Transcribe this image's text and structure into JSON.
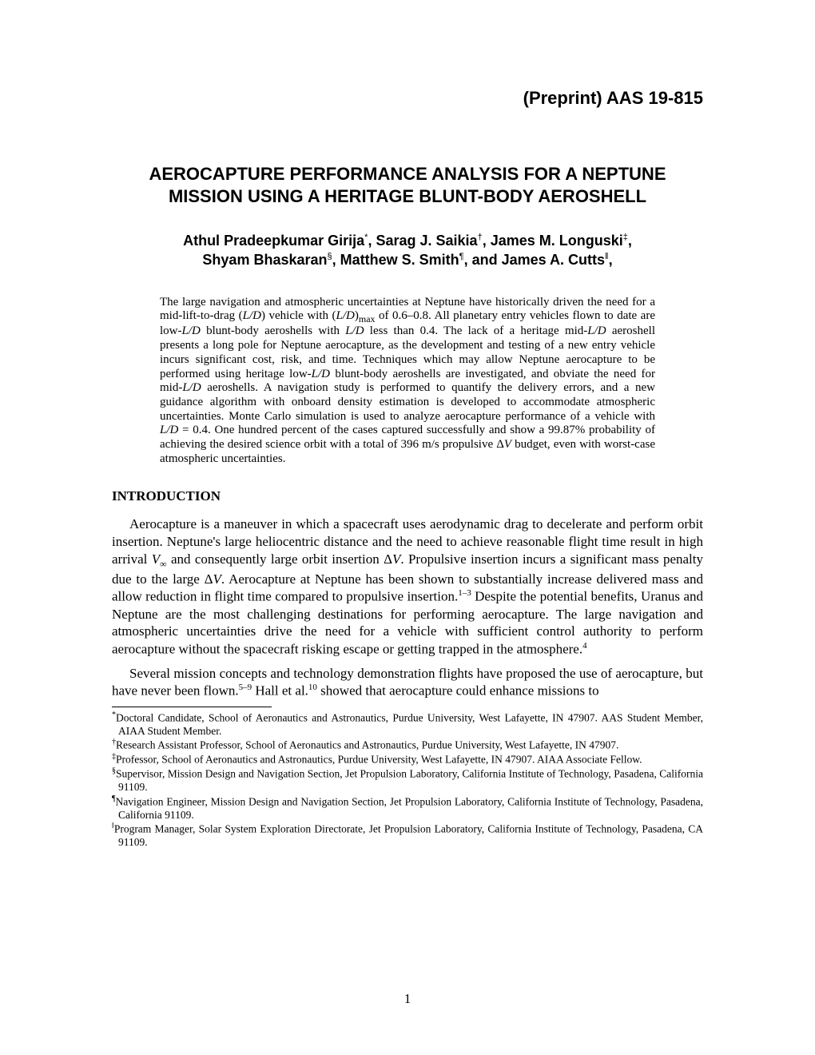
{
  "preprint_label": "(Preprint) AAS 19-815",
  "title": "AEROCAPTURE PERFORMANCE ANALYSIS FOR A NEPTUNE MISSION USING A HERITAGE BLUNT-BODY AEROSHELL",
  "authors_line1": "Athul Pradeepkumar Girija,* Sarag J. Saikia,† James M. Longuski,‡",
  "authors_line2": "Shyam Bhaskaran,§ Matthew S. Smith,¶ and James A. Cutts,‖",
  "authors": [
    {
      "name": "Athul Pradeepkumar Girija",
      "marker": "*"
    },
    {
      "name": "Sarag J. Saikia",
      "marker": "†"
    },
    {
      "name": "James M. Longuski",
      "marker": "‡"
    },
    {
      "name": "Shyam Bhaskaran",
      "marker": "§"
    },
    {
      "name": "Matthew S. Smith",
      "marker": "¶"
    },
    {
      "name": "James A. Cutts",
      "marker": "‖"
    }
  ],
  "abstract": "The large navigation and atmospheric uncertainties at Neptune have historically driven the need for a mid-lift-to-drag (L/D) vehicle with (L/D)max of 0.6–0.8. All planetary entry vehicles flown to date are low-L/D blunt-body aeroshells with L/D less than 0.4. The lack of a heritage mid-L/D aeroshell presents a long pole for Neptune aerocapture, as the development and testing of a new entry vehicle incurs significant cost, risk, and time. Techniques which may allow Neptune aerocapture to be performed using heritage low-L/D blunt-body aeroshells are investigated, and obviate the need for mid-L/D aeroshells. A navigation study is performed to quantify the delivery errors, and a new guidance algorithm with onboard density estimation is developed to accommodate atmospheric uncertainties. Monte Carlo simulation is used to analyze aerocapture performance of a vehicle with L/D = 0.4. One hundred percent of the cases captured successfully and show a 99.87% probability of achieving the desired science orbit with a total of 396 m/s propulsive ΔV budget, even with worst-case atmospheric uncertainties.",
  "section_heading": "INTRODUCTION",
  "para1_pre": "Aerocapture is a maneuver in which a spacecraft uses aerodynamic drag to decelerate and perform orbit insertion. Neptune's large heliocentric distance and the need to achieve reasonable flight time result in high arrival ",
  "para1_vinf": "V∞",
  "para1_mid1": " and consequently large orbit insertion Δ",
  "para1_dv1": "V",
  "para1_mid2": ". Propulsive insertion incurs a significant mass penalty due to the large Δ",
  "para1_dv2": "V",
  "para1_mid3": ". Aerocapture at Neptune has been shown to substantially increase delivered mass and allow reduction in flight time compared to propulsive insertion.",
  "para1_cite1": "1–3",
  "para1_mid4": " Despite the potential benefits, Uranus and Neptune are the most challenging destinations for performing aerocapture. The large navigation and atmospheric uncertainties drive the need for a vehicle with sufficient control authority to perform aerocapture without the spacecraft risking escape or getting trapped in the atmosphere.",
  "para1_cite2": "4",
  "para2_pre": "Several mission concepts and technology demonstration flights have proposed the use of aerocapture, but have never been flown.",
  "para2_cite1": "5–9",
  "para2_mid1": " Hall et al.",
  "para2_cite2": "10",
  "para2_post": " showed that aerocapture could enhance missions to",
  "footnotes": [
    {
      "marker": "*",
      "text": "Doctoral Candidate, School of Aeronautics and Astronautics, Purdue University, West Lafayette, IN 47907. AAS Student Member, AIAA Student Member."
    },
    {
      "marker": "†",
      "text": "Research Assistant Professor, School of Aeronautics and Astronautics, Purdue University, West Lafayette, IN 47907."
    },
    {
      "marker": "‡",
      "text": "Professor, School of Aeronautics and Astronautics, Purdue University, West Lafayette, IN 47907. AIAA Associate Fellow."
    },
    {
      "marker": "§",
      "text": "Supervisor, Mission Design and Navigation Section, Jet Propulsion Laboratory, California Institute of Technology, Pasadena, California 91109."
    },
    {
      "marker": "¶",
      "text": "Navigation Engineer, Mission Design and Navigation Section, Jet Propulsion Laboratory, California Institute of Technology, Pasadena, California 91109."
    },
    {
      "marker": "‖",
      "text": "Program Manager, Solar System Exploration Directorate, Jet Propulsion Laboratory, California Institute of Technology, Pasadena, CA 91109."
    }
  ],
  "page_number": "1",
  "colors": {
    "text": "#000000",
    "background": "#ffffff"
  },
  "fonts": {
    "body": "Times New Roman",
    "heading": "Arial"
  }
}
